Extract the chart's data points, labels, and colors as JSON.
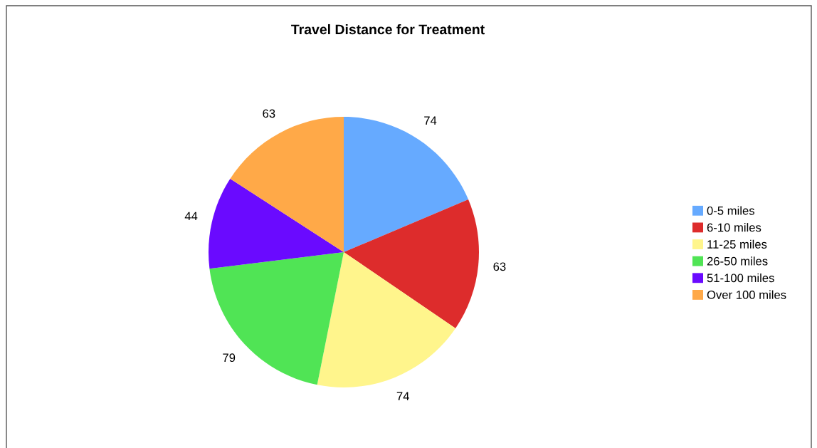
{
  "chart_data": {
    "type": "pie",
    "title": "Travel Distance for Treatment",
    "categories": [
      "0-5 miles",
      "6-10 miles",
      "11-25 miles",
      "26-50 miles",
      "51-100 miles",
      "Over 100 miles"
    ],
    "values": [
      74,
      63,
      74,
      79,
      44,
      63
    ],
    "colors": [
      "#66aaff",
      "#dd2c2c",
      "#fff58c",
      "#50e455",
      "#6a0aff",
      "#ffa948"
    ],
    "data_labels": true,
    "legend": "right"
  }
}
